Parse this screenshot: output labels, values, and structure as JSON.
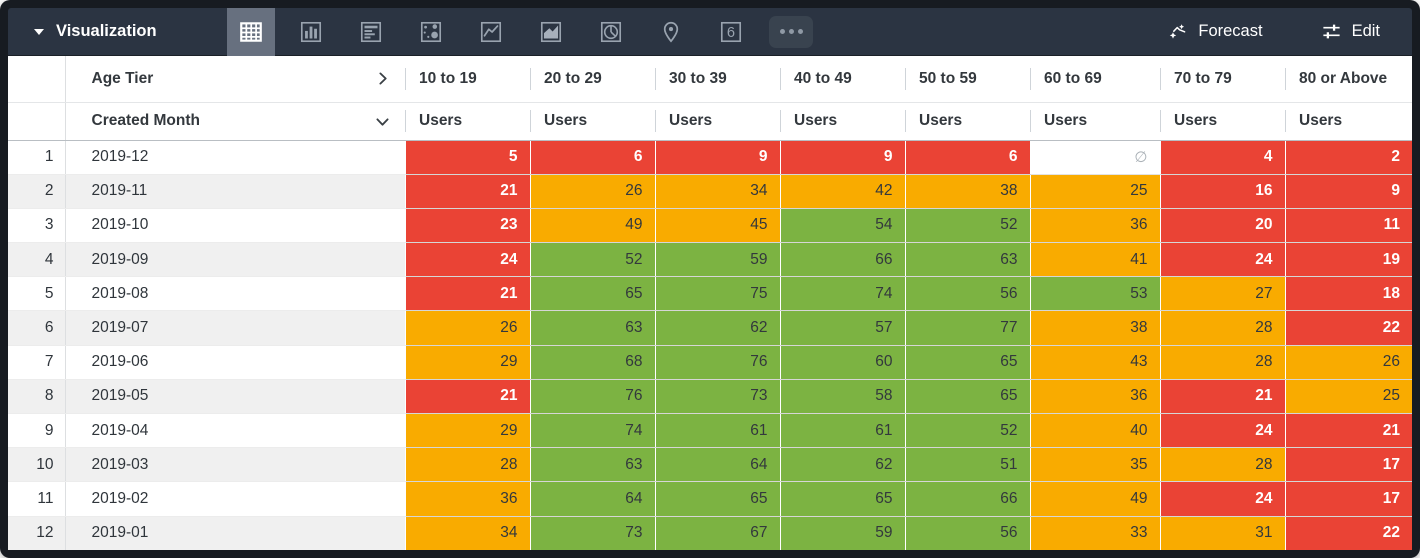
{
  "toolbar": {
    "title": "Visualization",
    "buttons": {
      "forecast": "Forecast",
      "edit": "Edit"
    },
    "single_value_glyph": "6",
    "icons": [
      "table",
      "column-chart",
      "row-chart",
      "scatter",
      "line-chart",
      "area-chart",
      "pie-chart",
      "map-pin",
      "single-value",
      "more"
    ],
    "selected_icon": "table"
  },
  "table": {
    "pivot_field": "Age Tier",
    "row_field": "Created Month",
    "measure": "Users",
    "columns": [
      "10 to 19",
      "20 to 29",
      "30 to 39",
      "40 to 49",
      "50 to 59",
      "60 to 69",
      "70 to 79",
      "80 or Above"
    ],
    "null_symbol": "∅",
    "rows": [
      {
        "n": "1",
        "month": "2019-12",
        "values": [
          5,
          6,
          9,
          9,
          6,
          null,
          4,
          2
        ],
        "colors": [
          "R",
          "R",
          "R",
          "R",
          "R",
          "N",
          "R",
          "R"
        ]
      },
      {
        "n": "2",
        "month": "2019-11",
        "values": [
          21,
          26,
          34,
          42,
          38,
          25,
          16,
          9
        ],
        "colors": [
          "R",
          "O",
          "O",
          "O",
          "O",
          "O",
          "R",
          "R"
        ]
      },
      {
        "n": "3",
        "month": "2019-10",
        "values": [
          23,
          49,
          45,
          54,
          52,
          36,
          20,
          11
        ],
        "colors": [
          "R",
          "O",
          "O",
          "G",
          "G",
          "O",
          "R",
          "R"
        ]
      },
      {
        "n": "4",
        "month": "2019-09",
        "values": [
          24,
          52,
          59,
          66,
          63,
          41,
          24,
          19
        ],
        "colors": [
          "R",
          "G",
          "G",
          "G",
          "G",
          "O",
          "R",
          "R"
        ]
      },
      {
        "n": "5",
        "month": "2019-08",
        "values": [
          21,
          65,
          75,
          74,
          56,
          53,
          27,
          18
        ],
        "colors": [
          "R",
          "G",
          "G",
          "G",
          "G",
          "G",
          "O",
          "R"
        ]
      },
      {
        "n": "6",
        "month": "2019-07",
        "values": [
          26,
          63,
          62,
          57,
          77,
          38,
          28,
          22
        ],
        "colors": [
          "O",
          "G",
          "G",
          "G",
          "G",
          "O",
          "O",
          "R"
        ]
      },
      {
        "n": "7",
        "month": "2019-06",
        "values": [
          29,
          68,
          76,
          60,
          65,
          43,
          28,
          26
        ],
        "colors": [
          "O",
          "G",
          "G",
          "G",
          "G",
          "O",
          "O",
          "O"
        ]
      },
      {
        "n": "8",
        "month": "2019-05",
        "values": [
          21,
          76,
          73,
          58,
          65,
          36,
          21,
          25
        ],
        "colors": [
          "R",
          "G",
          "G",
          "G",
          "G",
          "O",
          "R",
          "O"
        ]
      },
      {
        "n": "9",
        "month": "2019-04",
        "values": [
          29,
          74,
          61,
          61,
          52,
          40,
          24,
          21
        ],
        "colors": [
          "O",
          "G",
          "G",
          "G",
          "G",
          "O",
          "R",
          "R"
        ]
      },
      {
        "n": "10",
        "month": "2019-03",
        "values": [
          28,
          63,
          64,
          62,
          51,
          35,
          28,
          17
        ],
        "colors": [
          "O",
          "G",
          "G",
          "G",
          "G",
          "O",
          "O",
          "R"
        ]
      },
      {
        "n": "11",
        "month": "2019-02",
        "values": [
          36,
          64,
          65,
          65,
          66,
          49,
          24,
          17
        ],
        "colors": [
          "O",
          "G",
          "G",
          "G",
          "G",
          "O",
          "R",
          "R"
        ]
      },
      {
        "n": "12",
        "month": "2019-01",
        "values": [
          34,
          73,
          67,
          59,
          56,
          33,
          31,
          22
        ],
        "colors": [
          "O",
          "G",
          "G",
          "G",
          "G",
          "O",
          "O",
          "R"
        ]
      }
    ]
  },
  "colors": {
    "heat_red": "#EA4335",
    "heat_orange": "#F9AB00",
    "heat_green": "#7CB342",
    "toolbar_bg": "#2B3442",
    "frame": "#171B21",
    "selected_icon_bg": "#67707F",
    "icon_stroke": "#99A3AF"
  }
}
